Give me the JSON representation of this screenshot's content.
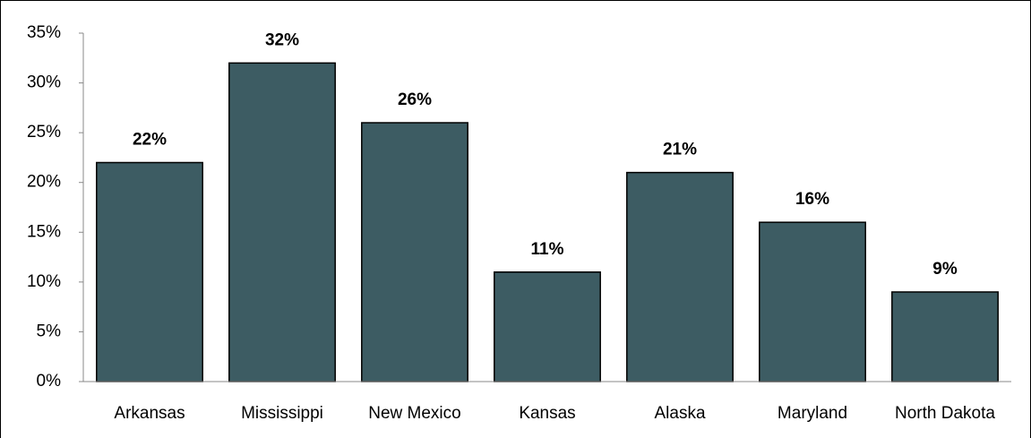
{
  "chart_data": {
    "type": "bar",
    "categories": [
      "Arkansas",
      "Mississippi",
      "New Mexico",
      "Kansas",
      "Alaska",
      "Maryland",
      "North Dakota"
    ],
    "values": [
      22,
      32,
      26,
      11,
      21,
      16,
      9
    ],
    "value_labels": [
      "22%",
      "32%",
      "26%",
      "11%",
      "21%",
      "16%",
      "9%"
    ],
    "color": "#3d5c63",
    "ylim": [
      0,
      35
    ],
    "yticks": [
      {
        "value": 0,
        "label": "0%"
      },
      {
        "value": 5,
        "label": "5%"
      },
      {
        "value": 10,
        "label": "10%"
      },
      {
        "value": 15,
        "label": "15%"
      },
      {
        "value": 20,
        "label": "20%"
      },
      {
        "value": 25,
        "label": "25%"
      },
      {
        "value": 30,
        "label": "30%"
      },
      {
        "value": 35,
        "label": "35%"
      }
    ],
    "grid": false
  }
}
